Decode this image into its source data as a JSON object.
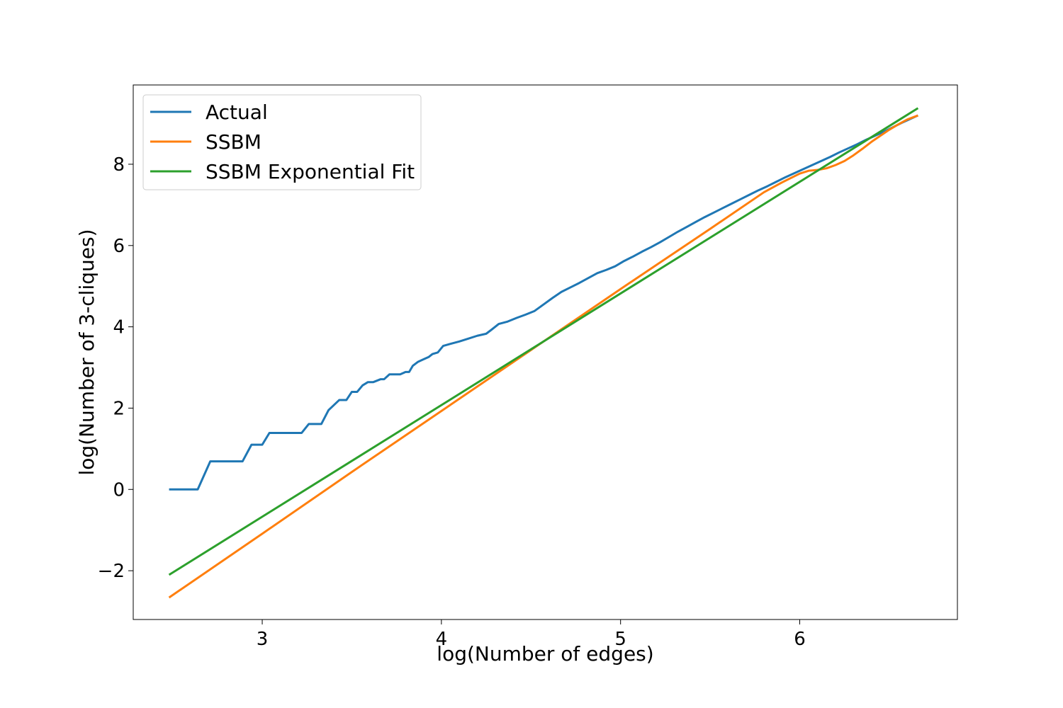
{
  "chart_data": {
    "type": "line",
    "title": "",
    "xlabel": "log(Number of edges)",
    "ylabel": "log(Number of 3-cliques)",
    "xlim": [
      2.28,
      6.88
    ],
    "ylim": [
      -3.2,
      9.95
    ],
    "xticks": [
      3,
      4,
      5,
      6
    ],
    "xtick_labels": [
      "3",
      "4",
      "5",
      "6"
    ],
    "yticks": [
      -2,
      0,
      2,
      4,
      6,
      8
    ],
    "ytick_labels": [
      "−2",
      "0",
      "2",
      "4",
      "6",
      "8"
    ],
    "grid": false,
    "legend_position": "top-left",
    "series": [
      {
        "name": "Actual",
        "color": "#1f77b4",
        "points": [
          [
            2.48,
            0.0
          ],
          [
            2.56,
            0.0
          ],
          [
            2.64,
            0.0
          ],
          [
            2.71,
            0.69
          ],
          [
            2.77,
            0.69
          ],
          [
            2.83,
            0.69
          ],
          [
            2.89,
            0.69
          ],
          [
            2.94,
            1.1
          ],
          [
            3.0,
            1.1
          ],
          [
            3.04,
            1.39
          ],
          [
            3.09,
            1.39
          ],
          [
            3.14,
            1.39
          ],
          [
            3.18,
            1.39
          ],
          [
            3.22,
            1.39
          ],
          [
            3.26,
            1.61
          ],
          [
            3.33,
            1.61
          ],
          [
            3.37,
            1.95
          ],
          [
            3.43,
            2.2
          ],
          [
            3.47,
            2.2
          ],
          [
            3.5,
            2.4
          ],
          [
            3.53,
            2.4
          ],
          [
            3.56,
            2.56
          ],
          [
            3.59,
            2.64
          ],
          [
            3.62,
            2.64
          ],
          [
            3.66,
            2.71
          ],
          [
            3.68,
            2.71
          ],
          [
            3.71,
            2.83
          ],
          [
            3.74,
            2.83
          ],
          [
            3.77,
            2.83
          ],
          [
            3.8,
            2.89
          ],
          [
            3.82,
            2.89
          ],
          [
            3.84,
            3.04
          ],
          [
            3.87,
            3.14
          ],
          [
            3.9,
            3.2
          ],
          [
            3.93,
            3.26
          ],
          [
            3.95,
            3.33
          ],
          [
            3.98,
            3.37
          ],
          [
            4.01,
            3.53
          ],
          [
            4.05,
            3.58
          ],
          [
            4.1,
            3.64
          ],
          [
            4.15,
            3.71
          ],
          [
            4.2,
            3.78
          ],
          [
            4.25,
            3.83
          ],
          [
            4.28,
            3.93
          ],
          [
            4.32,
            4.07
          ],
          [
            4.37,
            4.13
          ],
          [
            4.42,
            4.22
          ],
          [
            4.47,
            4.3
          ],
          [
            4.52,
            4.39
          ],
          [
            4.57,
            4.55
          ],
          [
            4.62,
            4.71
          ],
          [
            4.67,
            4.86
          ],
          [
            4.72,
            4.97
          ],
          [
            4.77,
            5.08
          ],
          [
            4.82,
            5.2
          ],
          [
            4.87,
            5.32
          ],
          [
            4.92,
            5.4
          ],
          [
            4.97,
            5.49
          ],
          [
            5.02,
            5.62
          ],
          [
            5.07,
            5.73
          ],
          [
            5.12,
            5.85
          ],
          [
            5.17,
            5.96
          ],
          [
            5.22,
            6.08
          ],
          [
            5.27,
            6.21
          ],
          [
            5.32,
            6.34
          ],
          [
            5.37,
            6.46
          ],
          [
            5.42,
            6.58
          ],
          [
            5.47,
            6.7
          ],
          [
            5.52,
            6.81
          ],
          [
            5.57,
            6.92
          ],
          [
            5.62,
            7.03
          ],
          [
            5.67,
            7.14
          ],
          [
            5.72,
            7.25
          ],
          [
            5.77,
            7.36
          ],
          [
            5.82,
            7.46
          ],
          [
            5.87,
            7.57
          ],
          [
            5.92,
            7.68
          ],
          [
            5.97,
            7.78
          ],
          [
            6.02,
            7.88
          ],
          [
            6.07,
            7.98
          ],
          [
            6.12,
            8.08
          ],
          [
            6.17,
            8.18
          ],
          [
            6.22,
            8.29
          ],
          [
            6.27,
            8.39
          ],
          [
            6.32,
            8.49
          ],
          [
            6.37,
            8.6
          ],
          [
            6.42,
            8.7
          ],
          [
            6.47,
            8.8
          ],
          [
            6.52,
            8.91
          ],
          [
            6.57,
            9.02
          ],
          [
            6.62,
            9.12
          ],
          [
            6.66,
            9.2
          ]
        ]
      },
      {
        "name": "SSBM",
        "color": "#ff7f0e",
        "points": [
          [
            2.48,
            -2.66
          ],
          [
            3.0,
            -1.09
          ],
          [
            3.5,
            0.43
          ],
          [
            4.0,
            1.93
          ],
          [
            4.5,
            3.43
          ],
          [
            5.0,
            4.93
          ],
          [
            5.5,
            6.41
          ],
          [
            5.8,
            7.31
          ],
          [
            5.9,
            7.55
          ],
          [
            6.0,
            7.77
          ],
          [
            6.05,
            7.84
          ],
          [
            6.1,
            7.86
          ],
          [
            6.15,
            7.9
          ],
          [
            6.2,
            7.98
          ],
          [
            6.25,
            8.08
          ],
          [
            6.3,
            8.22
          ],
          [
            6.35,
            8.38
          ],
          [
            6.4,
            8.55
          ],
          [
            6.45,
            8.7
          ],
          [
            6.5,
            8.85
          ],
          [
            6.55,
            8.98
          ],
          [
            6.6,
            9.1
          ],
          [
            6.66,
            9.2
          ]
        ]
      },
      {
        "name": "SSBM Exponential Fit",
        "color": "#2ca02c",
        "points": [
          [
            2.48,
            -2.1
          ],
          [
            6.66,
            9.38
          ]
        ]
      }
    ]
  }
}
